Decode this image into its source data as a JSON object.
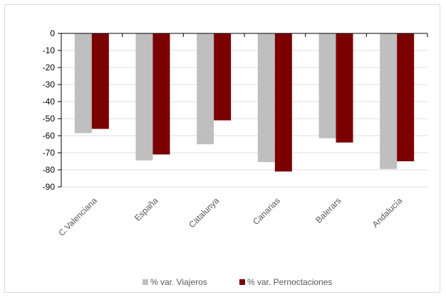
{
  "chart_data": {
    "type": "bar",
    "title": "",
    "xlabel": "",
    "ylabel": "",
    "ylim": [
      -90,
      0
    ],
    "yticks": [
      0,
      -10,
      -20,
      -30,
      -40,
      -50,
      -60,
      -70,
      -80,
      -90
    ],
    "ytick_labels": [
      "0",
      "-10",
      "-20",
      "-30",
      "-40",
      "-50",
      "-60",
      "-70",
      "-80",
      "-90"
    ],
    "grid": true,
    "legend_position": "bottom",
    "categories": [
      "C.Valenciana",
      "España",
      "Catalunya",
      "Canarias",
      "Balerars",
      "Andalucía"
    ],
    "series": [
      {
        "name": "% var. Viajeros",
        "color": "#bfbfbf",
        "values": [
          -58.5,
          -74.5,
          -65,
          -75.5,
          -61.5,
          -79.5
        ]
      },
      {
        "name": "% var. Pernoctaciones",
        "color": "#7b0000",
        "values": [
          -56,
          -71,
          -51,
          -81,
          -64,
          -75
        ]
      }
    ]
  }
}
